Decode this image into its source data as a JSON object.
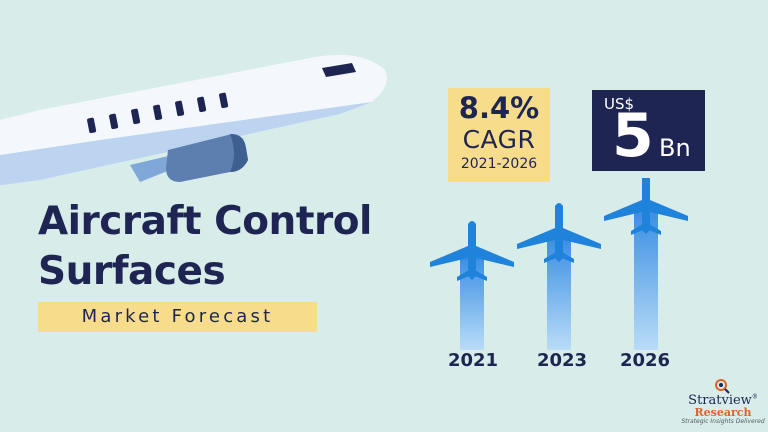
{
  "title": {
    "line1": "Aircraft Control",
    "line2": "Surfaces"
  },
  "subtitle": "Market Forecast",
  "cagr": {
    "value": "8.4%",
    "label": "CAGR",
    "years": "2021-2026"
  },
  "market_value": {
    "currency": "US$",
    "amount": "5",
    "unit": "Bn"
  },
  "years": [
    "2021",
    "2023",
    "2026"
  ],
  "logo": {
    "name": "Stratview",
    "registered_mark": "®",
    "sub": "Research",
    "tagline": "Strategic Insights Delivered"
  },
  "colors": {
    "background": "#d8ece9",
    "navy": "#1e2552",
    "highlight": "#f7dc8b",
    "plane_blue": "#2a8fe0",
    "accent_orange": "#e0632a"
  },
  "icons": [
    "airplane-illustration",
    "airplane-icon",
    "contrail",
    "magnifier-logo-icon"
  ]
}
